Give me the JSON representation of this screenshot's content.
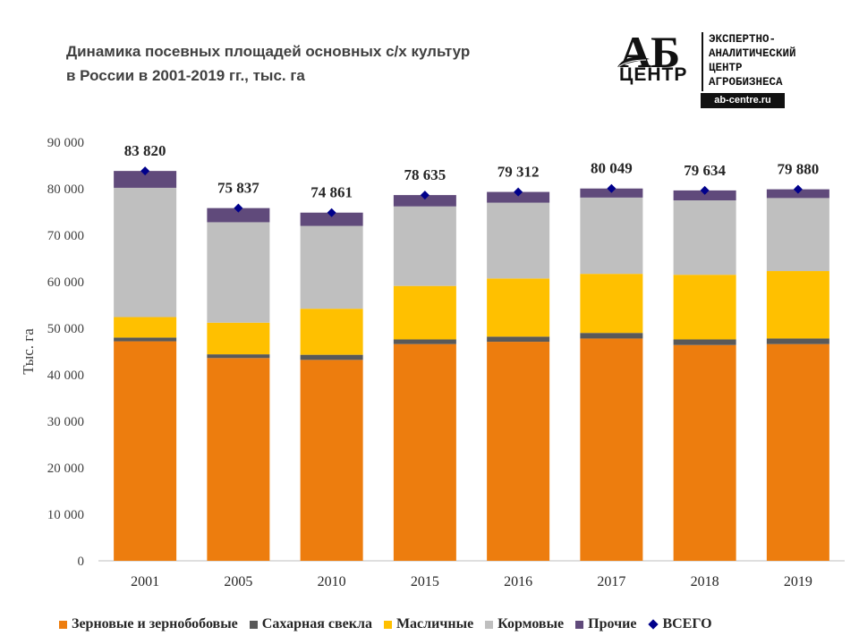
{
  "title": {
    "line1": "Динамика посевных площадей основных с/х культур",
    "line2": "в России в 2001-2019 гг., тыс. га"
  },
  "logo": {
    "big": "АБ",
    "small": "ЦЕНТР",
    "desc": [
      "ЭКСПЕРТНО-",
      "АНАЛИТИЧЕСКИЙ",
      "ЦЕНТР",
      "АГРОБИЗНЕСА"
    ],
    "url": "ab-centre.ru"
  },
  "chart_data": {
    "type": "bar",
    "stacked": true,
    "title": "Динамика посевных площадей основных с/х культур в России в 2001-2019 гг., тыс. га",
    "xlabel": "",
    "ylabel": "Тыс. га",
    "ylim": [
      0,
      90000
    ],
    "yticks": [
      0,
      10000,
      20000,
      30000,
      40000,
      50000,
      60000,
      70000,
      80000,
      90000
    ],
    "ytick_labels": [
      "0",
      "10 000",
      "20 000",
      "30 000",
      "40 000",
      "50 000",
      "60 000",
      "70 000",
      "80 000",
      "90 000"
    ],
    "categories": [
      "2001",
      "2005",
      "2010",
      "2015",
      "2016",
      "2017",
      "2018",
      "2019"
    ],
    "series": [
      {
        "name": "Зерновые и зернобобовые",
        "color": "#ed7d0e",
        "values": [
          47200,
          43600,
          43200,
          46600,
          47100,
          47800,
          46400,
          46600
        ]
      },
      {
        "name": "Сахарная свекла",
        "color": "#595959",
        "values": [
          800,
          800,
          1100,
          1000,
          1100,
          1200,
          1200,
          1200
        ]
      },
      {
        "name": "Масличные",
        "color": "#ffc000",
        "values": [
          4400,
          6800,
          9900,
          11500,
          12500,
          12700,
          13900,
          14500
        ]
      },
      {
        "name": "Кормовые",
        "color": "#bfbfbf",
        "values": [
          27800,
          21600,
          17800,
          17100,
          16300,
          16400,
          16000,
          15700
        ]
      },
      {
        "name": "Прочие",
        "color": "#604a7b",
        "values": [
          3620,
          3037,
          2861,
          2435,
          2312,
          1949,
          2134,
          1880
        ]
      }
    ],
    "total": {
      "name": "ВСЕГО",
      "color": "#00008b",
      "values": [
        83820,
        75837,
        74861,
        78635,
        79312,
        80049,
        79634,
        79880
      ],
      "labels": [
        "83 820",
        "75 837",
        "74 861",
        "78 635",
        "79 312",
        "80 049",
        "79 634",
        "79 880"
      ]
    },
    "legend_position": "bottom"
  }
}
